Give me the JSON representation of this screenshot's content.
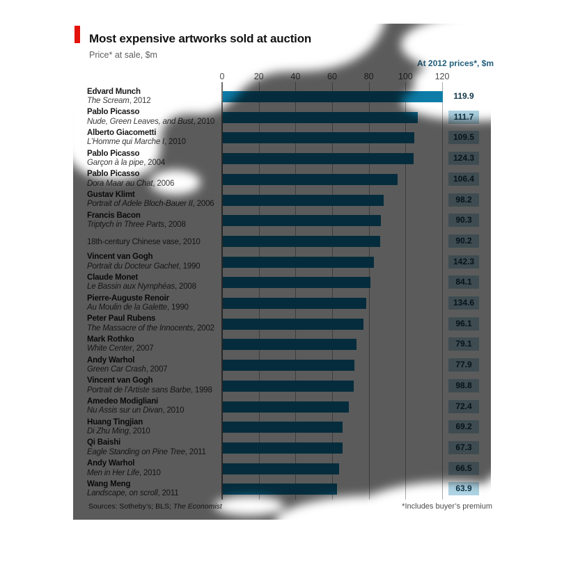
{
  "header": {
    "title": "Most expensive artworks sold at auction",
    "subtitle": "Price* at sale, $m",
    "right_axis_title": "At 2012 prices*, $m"
  },
  "footer": {
    "sources_prefix": "Sources: Sotheby’s; BLS; ",
    "sources_italic": "The Economist",
    "footnote": "*Includes buyer’s premium"
  },
  "palette": {
    "accent_red": "#e3120b",
    "bar_blue": "#0e7ca8",
    "badge_blue": "#aed4e4",
    "badge_text": "#113549",
    "overlay": "rgba(0,0,0,0.645)"
  },
  "chart_data": {
    "type": "bar",
    "orientation": "horizontal",
    "title": "Most expensive artworks sold at auction",
    "xlabel": "Price* at sale, $m",
    "x_ticks": [
      0,
      20,
      40,
      60,
      80,
      100,
      120
    ],
    "xlim": [
      0,
      120
    ],
    "grid": true,
    "value_column_header": "At 2012 prices*, $m",
    "bars": [
      {
        "artist": "Edvard Munch",
        "work": "The Scream",
        "year": "2012",
        "italic": true,
        "sale_price": 119.9,
        "price_2012": "119.9",
        "badge": false
      },
      {
        "artist": "Pablo Picasso",
        "work": "Nude, Green Leaves, and Bust",
        "year": "2010",
        "italic": true,
        "sale_price": 106.5,
        "price_2012": "111.7",
        "badge": true
      },
      {
        "artist": "Alberto Giacometti",
        "work": "L’Homme qui Marche I",
        "year": "2010",
        "italic": true,
        "sale_price": 104.3,
        "price_2012": "109.5",
        "badge": true
      },
      {
        "artist": "Pablo Picasso",
        "work": "Garçon à la pipe",
        "year": "2004",
        "italic": true,
        "sale_price": 104.2,
        "price_2012": "124.3",
        "badge": true
      },
      {
        "artist": "Pablo Picasso",
        "work": "Dora Maar au Chat",
        "year": "2006",
        "italic": true,
        "sale_price": 95.2,
        "price_2012": "106.4",
        "badge": true
      },
      {
        "artist": "Gustav Klimt",
        "work": "Portrait of Adele Bloch-Bauer II",
        "year": "2006",
        "italic": true,
        "sale_price": 87.9,
        "price_2012": "98.2",
        "badge": true
      },
      {
        "artist": "Francis Bacon",
        "work": "Triptych in Three Parts",
        "year": "2008",
        "italic": true,
        "sale_price": 86.3,
        "price_2012": "90.3",
        "badge": true
      },
      {
        "artist": "",
        "work": "18th-century Chinese vase",
        "year": "2010",
        "italic": false,
        "sale_price": 85.9,
        "price_2012": "90.2",
        "badge": true
      },
      {
        "artist": "Vincent van Gogh",
        "work": "Portrait du Docteur Gachet",
        "year": "1990",
        "italic": true,
        "sale_price": 82.5,
        "price_2012": "142.3",
        "badge": true
      },
      {
        "artist": "Claude Monet",
        "work": "Le Bassin aux Nymphéas",
        "year": "2008",
        "italic": true,
        "sale_price": 80.5,
        "price_2012": "84.1",
        "badge": true
      },
      {
        "artist": "Pierre-Auguste Renoir",
        "work": "Au Moulin de la Galette",
        "year": "1990",
        "italic": true,
        "sale_price": 78.1,
        "price_2012": "134.6",
        "badge": true
      },
      {
        "artist": "Peter Paul Rubens",
        "work": "The Massacre of the Innocents",
        "year": "2002",
        "italic": true,
        "sale_price": 76.7,
        "price_2012": "96.1",
        "badge": true
      },
      {
        "artist": "Mark Rothko",
        "work": "White Center",
        "year": "2007",
        "italic": true,
        "sale_price": 72.8,
        "price_2012": "79.1",
        "badge": true
      },
      {
        "artist": "Andy Warhol",
        "work": "Green Car Crash",
        "year": "2007",
        "italic": true,
        "sale_price": 71.7,
        "price_2012": "77.9",
        "badge": true
      },
      {
        "artist": "Vincent van Gogh",
        "work": "Portrait de l’Artiste sans Barbe",
        "year": "1998",
        "italic": true,
        "sale_price": 71.5,
        "price_2012": "98.8",
        "badge": true
      },
      {
        "artist": "Amedeo Modigliani",
        "work": "Nu Assis sur un Divan",
        "year": "2010",
        "italic": true,
        "sale_price": 68.9,
        "price_2012": "72.4",
        "badge": true
      },
      {
        "artist": "Huang Tingjian",
        "work": "Di Zhu Ming",
        "year": "2010",
        "italic": true,
        "sale_price": 65.5,
        "price_2012": "69.2",
        "badge": true
      },
      {
        "artist": "Qi Baishi",
        "work": "Eagle Standing on Pine Tree",
        "year": "2011",
        "italic": true,
        "sale_price": 65.4,
        "price_2012": "67.3",
        "badge": true
      },
      {
        "artist": "Andy Warhol",
        "work": "Men in Her Life",
        "year": "2010",
        "italic": true,
        "sale_price": 63.4,
        "price_2012": "66.5",
        "badge": true
      },
      {
        "artist": "Wang Meng",
        "work": "Landscape, on scroll",
        "year": "2011",
        "italic": true,
        "sale_price": 62.1,
        "price_2012": "63.9",
        "badge": true
      }
    ]
  }
}
